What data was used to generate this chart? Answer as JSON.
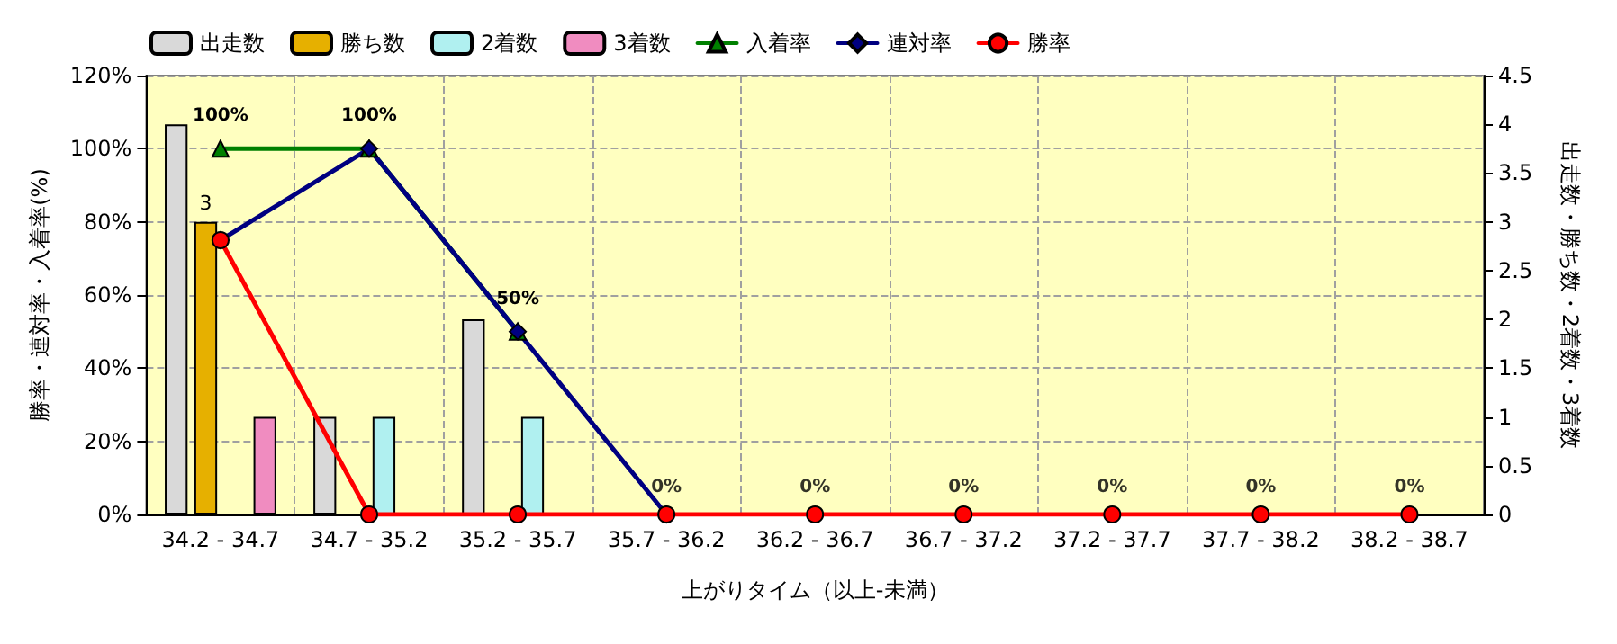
{
  "chart_data": {
    "type": "bar",
    "xlabel": "上がりタイム（以上-未満）",
    "ylabel": "勝率・連対率・入着率(%)",
    "y2label": "出走数・勝ち数・2着数・3着数",
    "categories": [
      "34.2 - 34.7",
      "34.7 - 35.2",
      "35.2 - 35.7",
      "35.7 - 36.2",
      "36.2 - 36.7",
      "36.7 - 37.2",
      "37.2 - 37.7",
      "37.7 - 38.2",
      "38.2 - 38.7"
    ],
    "series": [
      {
        "name": "出走数",
        "axis": "y2",
        "color": "#d9d9d9",
        "values": [
          4,
          1,
          2,
          0,
          0,
          0,
          0,
          0,
          0
        ]
      },
      {
        "name": "勝ち数",
        "axis": "y2",
        "color": "#e6b000",
        "values": [
          3,
          0,
          0,
          0,
          0,
          0,
          0,
          0,
          0
        ],
        "value_labels": [
          "3",
          null,
          null,
          null,
          null,
          null,
          null,
          null,
          null
        ]
      },
      {
        "name": "2着数",
        "axis": "y2",
        "color": "#b0f0f0",
        "values": [
          0,
          1,
          1,
          0,
          0,
          0,
          0,
          0,
          0
        ]
      },
      {
        "name": "3着数",
        "axis": "y2",
        "color": "#f08cc0",
        "values": [
          1,
          0,
          0,
          0,
          0,
          0,
          0,
          0,
          0
        ]
      },
      {
        "name": "入着率",
        "type": "line",
        "color": "#008000",
        "marker": "triangle",
        "values": [
          100,
          100,
          50,
          null,
          null,
          null,
          null,
          null,
          null
        ],
        "value_labels": [
          "100%",
          "100%",
          "50%",
          null,
          null,
          null,
          null,
          null,
          null
        ]
      },
      {
        "name": "連対率",
        "type": "line",
        "color": "#000080",
        "marker": "diamond",
        "values": [
          75,
          100,
          50,
          0,
          null,
          null,
          null,
          null,
          null
        ]
      },
      {
        "name": "勝率",
        "type": "line",
        "color": "#ff0000",
        "marker": "circle",
        "values": [
          75,
          0,
          0,
          0,
          0,
          0,
          0,
          0,
          0
        ]
      }
    ],
    "annotations": [
      {
        "text": "0%",
        "x": "35.7 - 36.2",
        "y": 0
      },
      {
        "text": "0%",
        "x": "36.2 - 36.7",
        "y": 0
      },
      {
        "text": "0%",
        "x": "36.7 - 37.2",
        "y": 0
      },
      {
        "text": "0%",
        "x": "37.2 - 37.7",
        "y": 0
      },
      {
        "text": "0%",
        "x": "37.7 - 38.2",
        "y": 0
      },
      {
        "text": "0%",
        "x": "38.2 - 38.7",
        "y": 0
      }
    ],
    "ylim": [
      0,
      120
    ],
    "yticks": [
      {
        "value": 0,
        "label": "0%"
      },
      {
        "value": 20,
        "label": "20%"
      },
      {
        "value": 40,
        "label": "40%"
      },
      {
        "value": 60,
        "label": "60%"
      },
      {
        "value": 80,
        "label": "80%"
      },
      {
        "value": 100,
        "label": "100%"
      },
      {
        "value": 120,
        "label": "120%"
      }
    ],
    "y2lim": [
      0,
      4.5
    ],
    "y2ticks": [
      0,
      0.5,
      1,
      1.5,
      2,
      2.5,
      3,
      3.5,
      4,
      4.5
    ],
    "grid": true,
    "legend": "top left",
    "line_style": "solid"
  }
}
